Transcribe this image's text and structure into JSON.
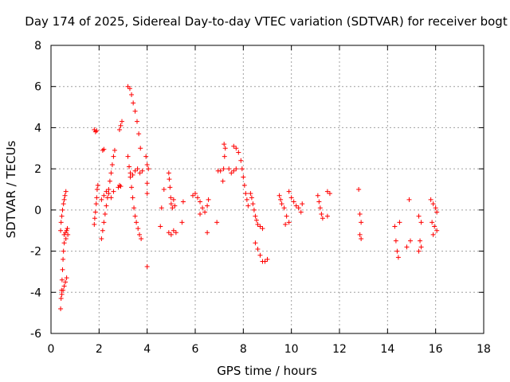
{
  "chart_data": {
    "type": "scatter",
    "title": "Day 174 of 2025, Sidereal Day-to-day VTEC variation (SDTVAR) for receiver bogt",
    "xlabel": "GPS time / hours",
    "ylabel": "SDTVAR / TECUs",
    "xlim": [
      0,
      18
    ],
    "ylim": [
      -6,
      8
    ],
    "xticks": [
      "0",
      "2",
      "4",
      "6",
      "8",
      "10",
      "12",
      "14",
      "16",
      "18"
    ],
    "yticks": [
      "-6",
      "-4",
      "-2",
      "0",
      "2",
      "4",
      "6",
      "8"
    ],
    "grid": true,
    "marker": "plus",
    "marker_color": "#ff0000",
    "series": [
      {
        "name": "SDTVAR",
        "points": [
          [
            0.4,
            -4.8
          ],
          [
            0.42,
            -4.3
          ],
          [
            0.44,
            -3.9
          ],
          [
            0.46,
            -3.4
          ],
          [
            0.48,
            -2.9
          ],
          [
            0.5,
            -2.4
          ],
          [
            0.52,
            -2.0
          ],
          [
            0.55,
            -1.6
          ],
          [
            0.4,
            -1.0
          ],
          [
            0.42,
            -0.6
          ],
          [
            0.45,
            -0.3
          ],
          [
            0.48,
            0.0
          ],
          [
            0.52,
            0.3
          ],
          [
            0.55,
            0.5
          ],
          [
            0.58,
            0.7
          ],
          [
            0.62,
            0.9
          ],
          [
            0.45,
            -4.1
          ],
          [
            0.5,
            -3.9
          ],
          [
            0.55,
            -3.7
          ],
          [
            0.6,
            -3.5
          ],
          [
            0.65,
            -3.3
          ],
          [
            0.55,
            -1.2
          ],
          [
            0.6,
            -1.1
          ],
          [
            0.65,
            -1.0
          ],
          [
            0.7,
            -1.2
          ],
          [
            0.62,
            -1.4
          ],
          [
            0.68,
            -0.9
          ],
          [
            1.8,
            3.9
          ],
          [
            1.85,
            3.8
          ],
          [
            1.9,
            3.85
          ],
          [
            1.8,
            -0.7
          ],
          [
            1.82,
            -0.4
          ],
          [
            1.85,
            -0.1
          ],
          [
            1.88,
            0.3
          ],
          [
            1.9,
            0.6
          ],
          [
            1.92,
            1.0
          ],
          [
            1.95,
            1.2
          ],
          [
            2.1,
            -1.4
          ],
          [
            2.15,
            -1.0
          ],
          [
            2.2,
            -0.6
          ],
          [
            2.25,
            -0.2
          ],
          [
            2.3,
            0.2
          ],
          [
            2.35,
            0.6
          ],
          [
            2.4,
            1.0
          ],
          [
            2.45,
            1.4
          ],
          [
            2.5,
            1.8
          ],
          [
            2.55,
            2.2
          ],
          [
            2.6,
            2.6
          ],
          [
            2.65,
            2.9
          ],
          [
            2.1,
            0.5
          ],
          [
            2.2,
            0.7
          ],
          [
            2.3,
            0.9
          ],
          [
            2.4,
            0.8
          ],
          [
            2.5,
            0.6
          ],
          [
            2.6,
            0.9
          ],
          [
            2.15,
            2.9
          ],
          [
            2.2,
            2.95
          ],
          [
            2.8,
            1.1
          ],
          [
            2.85,
            1.2
          ],
          [
            2.9,
            1.15
          ],
          [
            2.85,
            3.9
          ],
          [
            2.9,
            4.1
          ],
          [
            2.95,
            4.3
          ],
          [
            3.2,
            6.0
          ],
          [
            3.28,
            5.9
          ],
          [
            3.35,
            5.6
          ],
          [
            3.42,
            5.2
          ],
          [
            3.5,
            4.8
          ],
          [
            3.58,
            4.3
          ],
          [
            3.65,
            3.7
          ],
          [
            3.72,
            3.0
          ],
          [
            3.2,
            2.6
          ],
          [
            3.25,
            2.1
          ],
          [
            3.3,
            1.6
          ],
          [
            3.35,
            1.1
          ],
          [
            3.4,
            0.6
          ],
          [
            3.45,
            0.1
          ],
          [
            3.5,
            -0.3
          ],
          [
            3.55,
            -0.6
          ],
          [
            3.62,
            -0.9
          ],
          [
            3.68,
            -1.2
          ],
          [
            3.75,
            -1.4
          ],
          [
            3.3,
            1.8
          ],
          [
            3.4,
            1.7
          ],
          [
            3.5,
            1.9
          ],
          [
            3.6,
            2.0
          ],
          [
            3.7,
            1.8
          ],
          [
            3.8,
            1.9
          ],
          [
            4.0,
            2.2
          ],
          [
            4.05,
            2.0
          ],
          [
            3.95,
            2.6
          ],
          [
            4.0,
            1.3
          ],
          [
            4.0,
            0.8
          ],
          [
            4.0,
            -2.75
          ],
          [
            4.7,
            1.0
          ],
          [
            4.6,
            0.1
          ],
          [
            4.55,
            -0.8
          ],
          [
            4.9,
            1.8
          ],
          [
            4.92,
            1.5
          ],
          [
            4.95,
            1.1
          ],
          [
            4.98,
            0.6
          ],
          [
            5.0,
            0.3
          ],
          [
            5.05,
            0.1
          ],
          [
            5.1,
            0.5
          ],
          [
            5.15,
            0.2
          ],
          [
            4.9,
            -1.1
          ],
          [
            5.0,
            -1.2
          ],
          [
            5.1,
            -1.0
          ],
          [
            5.2,
            -1.1
          ],
          [
            5.5,
            0.4
          ],
          [
            5.45,
            -0.6
          ],
          [
            5.9,
            0.7
          ],
          [
            6.0,
            0.8
          ],
          [
            6.1,
            0.6
          ],
          [
            6.2,
            0.4
          ],
          [
            6.3,
            0.1
          ],
          [
            6.4,
            -0.1
          ],
          [
            6.5,
            0.2
          ],
          [
            6.55,
            0.5
          ],
          [
            6.2,
            -0.2
          ],
          [
            6.5,
            -1.1
          ],
          [
            6.9,
            -0.6
          ],
          [
            6.95,
            1.9
          ],
          [
            7.05,
            1.9
          ],
          [
            7.2,
            3.2
          ],
          [
            7.25,
            3.0
          ],
          [
            7.22,
            2.6
          ],
          [
            7.18,
            2.0
          ],
          [
            7.15,
            1.4
          ],
          [
            7.4,
            2.0
          ],
          [
            7.5,
            1.8
          ],
          [
            7.6,
            1.9
          ],
          [
            7.7,
            2.0
          ],
          [
            7.6,
            3.1
          ],
          [
            7.7,
            3.0
          ],
          [
            7.8,
            2.8
          ],
          [
            7.9,
            2.4
          ],
          [
            7.95,
            2.0
          ],
          [
            8.0,
            1.6
          ],
          [
            8.05,
            1.2
          ],
          [
            8.1,
            0.8
          ],
          [
            8.15,
            0.5
          ],
          [
            8.2,
            0.2
          ],
          [
            8.3,
            0.8
          ],
          [
            8.35,
            0.6
          ],
          [
            8.4,
            0.3
          ],
          [
            8.45,
            0.0
          ],
          [
            8.5,
            -0.3
          ],
          [
            8.55,
            -0.5
          ],
          [
            8.6,
            -0.7
          ],
          [
            8.7,
            -0.8
          ],
          [
            8.8,
            -0.9
          ],
          [
            8.5,
            -1.6
          ],
          [
            8.6,
            -1.9
          ],
          [
            8.7,
            -2.2
          ],
          [
            8.8,
            -2.5
          ],
          [
            8.9,
            -2.5
          ],
          [
            9.0,
            -2.4
          ],
          [
            9.5,
            0.7
          ],
          [
            9.55,
            0.5
          ],
          [
            9.6,
            0.3
          ],
          [
            9.7,
            0.1
          ],
          [
            9.8,
            -0.3
          ],
          [
            9.9,
            -0.6
          ],
          [
            9.75,
            -0.7
          ],
          [
            9.9,
            0.9
          ],
          [
            10.0,
            0.6
          ],
          [
            10.1,
            0.4
          ],
          [
            10.2,
            0.2
          ],
          [
            10.3,
            0.1
          ],
          [
            10.4,
            -0.1
          ],
          [
            10.45,
            0.3
          ],
          [
            11.1,
            0.7
          ],
          [
            11.15,
            0.4
          ],
          [
            11.2,
            0.1
          ],
          [
            11.25,
            -0.2
          ],
          [
            11.3,
            -0.4
          ],
          [
            11.5,
            0.9
          ],
          [
            11.6,
            0.8
          ],
          [
            11.5,
            -0.3
          ],
          [
            12.8,
            1.0
          ],
          [
            12.85,
            -0.2
          ],
          [
            12.9,
            -0.6
          ],
          [
            12.85,
            -1.2
          ],
          [
            12.9,
            -1.4
          ],
          [
            14.3,
            -0.8
          ],
          [
            14.35,
            -1.5
          ],
          [
            14.4,
            -2.0
          ],
          [
            14.45,
            -2.3
          ],
          [
            14.5,
            -0.6
          ],
          [
            14.9,
            0.5
          ],
          [
            14.95,
            -1.5
          ],
          [
            14.8,
            -1.8
          ],
          [
            15.3,
            -0.3
          ],
          [
            15.4,
            -0.6
          ],
          [
            15.35,
            -1.5
          ],
          [
            15.4,
            -1.8
          ],
          [
            15.3,
            -2.0
          ],
          [
            15.8,
            0.5
          ],
          [
            15.9,
            0.3
          ],
          [
            16.0,
            0.1
          ],
          [
            16.05,
            -0.1
          ],
          [
            15.85,
            -0.6
          ],
          [
            15.95,
            -0.8
          ],
          [
            16.05,
            -1.0
          ],
          [
            15.9,
            -1.2
          ]
        ]
      }
    ]
  }
}
